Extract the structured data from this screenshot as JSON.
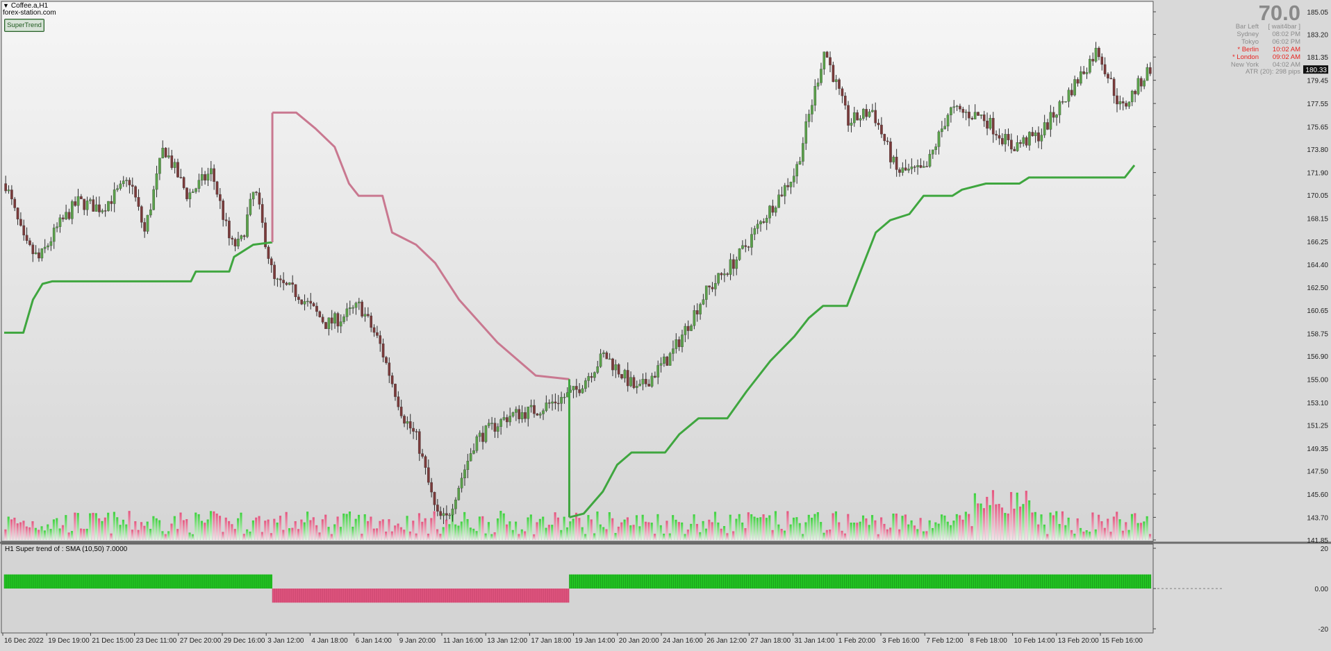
{
  "window": {
    "title": "Coffee.a,H1",
    "site": "forex-station.com"
  },
  "button": {
    "label": "SuperTrend"
  },
  "panel": {
    "value": "70.0",
    "rows": [
      {
        "label": "Bar Left",
        "value": "[ wait4bar ]",
        "highlight": false
      },
      {
        "label": "Sydney",
        "value": "08:02 PM",
        "highlight": false
      },
      {
        "label": "Tokyo",
        "value": "06:02 PM",
        "highlight": false
      },
      {
        "label": "* Berlin",
        "value": "10:02 AM",
        "highlight": true
      },
      {
        "label": "* London",
        "value": "09:02 AM",
        "highlight": true
      },
      {
        "label": "New York",
        "value": "04:02 AM",
        "highlight": false
      }
    ],
    "atr": "ATR (20): 298 pips"
  },
  "indicator": {
    "label": "H1  Super trend of :  SMA (10,50)  7.0000"
  },
  "colors": {
    "up": "#3fa63f",
    "down": "#c97890",
    "hist_up": "#22c322",
    "hist_down": "#e0557f",
    "bg": "#d9d9d9"
  },
  "chart_data": {
    "type": "line",
    "price_axis": {
      "ylim": [
        141.85,
        185.05
      ],
      "ticks": [
        "185.05",
        "183.20",
        "181.35",
        "179.45",
        "177.55",
        "175.65",
        "173.80",
        "171.90",
        "170.05",
        "168.15",
        "166.25",
        "164.40",
        "162.50",
        "160.65",
        "158.75",
        "156.90",
        "155.00",
        "153.10",
        "151.25",
        "149.35",
        "147.50",
        "145.60",
        "143.70",
        "141.85"
      ],
      "current": "180.33"
    },
    "indicator_axis": {
      "ylim": [
        -20,
        20
      ],
      "ticks": [
        "20",
        "0.00",
        "-20"
      ]
    },
    "x_ticks": [
      "16 Dec 2022",
      "19 Dec 19:00",
      "21 Dec 15:00",
      "23 Dec 11:00",
      "27 Dec 20:00",
      "29 Dec 16:00",
      "3 Jan 12:00",
      "4 Jan 18:00",
      "6 Jan 14:00",
      "9 Jan 20:00",
      "11 Jan 16:00",
      "13 Jan 12:00",
      "17 Jan 18:00",
      "19 Jan 14:00",
      "20 Jan 20:00",
      "24 Jan 16:00",
      "26 Jan 12:00",
      "27 Jan 18:00",
      "31 Jan 14:00",
      "1 Feb 20:00",
      "3 Feb 16:00",
      "7 Feb 12:00",
      "8 Feb 18:00",
      "10 Feb 14:00",
      "13 Feb 20:00",
      "15 Feb 16:00"
    ],
    "bar_count": 380,
    "price_path": [
      [
        0,
        171.0
      ],
      [
        8,
        166.0
      ],
      [
        14,
        164.8
      ],
      [
        22,
        167.5
      ],
      [
        30,
        169.5
      ],
      [
        40,
        169.0
      ],
      [
        52,
        171.3
      ],
      [
        58,
        167.0
      ],
      [
        66,
        174.0
      ],
      [
        76,
        170.0
      ],
      [
        86,
        172.0
      ],
      [
        94,
        166.0
      ],
      [
        98,
        166.0
      ],
      [
        104,
        170.6
      ],
      [
        112,
        163.0
      ],
      [
        122,
        162.0
      ],
      [
        134,
        159.5
      ],
      [
        140,
        160.0
      ],
      [
        148,
        161.0
      ],
      [
        156,
        158.0
      ],
      [
        166,
        152.0
      ],
      [
        172,
        150.0
      ],
      [
        180,
        143.8
      ],
      [
        184,
        143.5
      ],
      [
        196,
        150.0
      ],
      [
        210,
        152.0
      ],
      [
        222,
        152.5
      ],
      [
        238,
        154.0
      ],
      [
        250,
        157.0
      ],
      [
        264,
        154.0
      ],
      [
        278,
        157.0
      ],
      [
        292,
        162.0
      ],
      [
        306,
        165.0
      ],
      [
        316,
        168.0
      ],
      [
        330,
        172.0
      ],
      [
        342,
        182.0
      ],
      [
        352,
        176.0
      ],
      [
        362,
        177.0
      ],
      [
        372,
        172.0
      ],
      [
        384,
        172.0
      ],
      [
        394,
        177.0
      ],
      [
        408,
        176.5
      ],
      [
        420,
        174.0
      ],
      [
        432,
        175.0
      ],
      [
        446,
        179.0
      ],
      [
        456,
        182.0
      ],
      [
        466,
        177.0
      ],
      [
        478,
        180.5
      ]
    ],
    "supertrend": [
      {
        "trend": "up",
        "points": [
          [
            0,
            158.8
          ],
          [
            8,
            158.8
          ],
          [
            12,
            161.5
          ],
          [
            16,
            162.8
          ],
          [
            20,
            163.0
          ],
          [
            78,
            163.0
          ],
          [
            80,
            163.8
          ],
          [
            94,
            163.8
          ],
          [
            96,
            165.0
          ],
          [
            104,
            166.0
          ],
          [
            112,
            166.2
          ]
        ]
      },
      {
        "trend": "down",
        "points": [
          [
            112,
            176.8
          ],
          [
            122,
            176.8
          ],
          [
            130,
            175.5
          ],
          [
            138,
            174.0
          ],
          [
            144,
            171.0
          ],
          [
            148,
            170.0
          ],
          [
            158,
            170.0
          ],
          [
            162,
            167.0
          ],
          [
            166,
            166.6
          ],
          [
            172,
            166.0
          ],
          [
            180,
            164.5
          ],
          [
            190,
            161.5
          ],
          [
            206,
            158.0
          ],
          [
            222,
            155.3
          ],
          [
            236,
            155.0
          ]
        ]
      },
      {
        "trend": "up",
        "points": [
          [
            236,
            143.7
          ],
          [
            242,
            144.0
          ],
          [
            250,
            145.8
          ],
          [
            256,
            148.0
          ],
          [
            262,
            149.0
          ],
          [
            276,
            149.0
          ],
          [
            282,
            150.5
          ],
          [
            290,
            151.8
          ],
          [
            302,
            151.8
          ],
          [
            310,
            154.0
          ],
          [
            320,
            156.5
          ],
          [
            330,
            158.5
          ],
          [
            336,
            160.0
          ],
          [
            342,
            161.0
          ],
          [
            352,
            161.0
          ],
          [
            358,
            164.0
          ],
          [
            364,
            167.0
          ],
          [
            370,
            168.0
          ],
          [
            378,
            168.5
          ],
          [
            384,
            170.0
          ],
          [
            396,
            170.0
          ],
          [
            400,
            170.5
          ],
          [
            410,
            171.0
          ],
          [
            424,
            171.0
          ],
          [
            428,
            171.5
          ],
          [
            468,
            171.5
          ],
          [
            472,
            172.5
          ]
        ]
      }
    ],
    "indicator": {
      "segments": [
        {
          "trend": "up",
          "from": 0,
          "to": 112,
          "value": 7.0
        },
        {
          "trend": "down",
          "from": 112,
          "to": 236,
          "value": -7.0
        },
        {
          "trend": "up",
          "from": 236,
          "to": 479,
          "value": 7.0
        }
      ]
    }
  }
}
